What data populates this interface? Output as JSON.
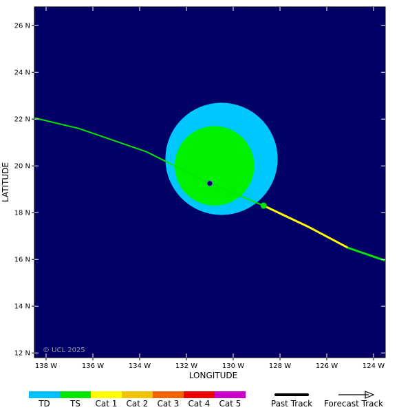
{
  "map": {
    "background_color": "#000066",
    "copyright": "© UCL 2025",
    "x_axis": {
      "title": "LONGITUDE",
      "range": [
        -138.5,
        -123.5
      ],
      "ticks": [
        {
          "value": -138,
          "label": "138 W"
        },
        {
          "value": -136,
          "label": "136 W"
        },
        {
          "value": -134,
          "label": "134 W"
        },
        {
          "value": -132,
          "label": "132 W"
        },
        {
          "value": -130,
          "label": "130 W"
        },
        {
          "value": -128,
          "label": "128 W"
        },
        {
          "value": -126,
          "label": "126 W"
        },
        {
          "value": -124,
          "label": "124 W"
        }
      ]
    },
    "y_axis": {
      "title": "LATITUDE",
      "range": [
        11.8,
        26.8
      ],
      "ticks": [
        {
          "value": 12,
          "label": "12 N"
        },
        {
          "value": 14,
          "label": "14 N"
        },
        {
          "value": 16,
          "label": "16 N"
        },
        {
          "value": 18,
          "label": "18 N"
        },
        {
          "value": 20,
          "label": "20 N"
        },
        {
          "value": 22,
          "label": "22 N"
        },
        {
          "value": 24,
          "label": "24 N"
        },
        {
          "value": 26,
          "label": "26 N"
        }
      ]
    },
    "wind_fields": [
      {
        "category": "TD",
        "color": "#00c8ff",
        "center": [
          -130.5,
          20.3
        ],
        "radius_deg": 2.4
      },
      {
        "category": "TS",
        "color": "#00f000",
        "center": [
          -130.8,
          20.0
        ],
        "radius_deg": 1.7
      }
    ],
    "current_position": {
      "lon": -131.0,
      "lat": 19.25,
      "color": "#000066"
    },
    "forecast_track": {
      "segments": [
        {
          "color": "#00e600",
          "points": [
            [
              -138.5,
              22.05
            ],
            [
              -136.6,
              21.6
            ],
            [
              -133.7,
              20.6
            ],
            [
              -131.0,
              19.25
            ],
            [
              -128.7,
              18.3
            ]
          ]
        },
        {
          "color": "#ffff00",
          "points": [
            [
              -128.7,
              18.3
            ],
            [
              -126.8,
              17.4
            ],
            [
              -125.1,
              16.5
            ]
          ]
        },
        {
          "color": "#00e600",
          "points": [
            [
              -125.1,
              16.5
            ],
            [
              -123.5,
              15.95
            ]
          ]
        }
      ],
      "dot": {
        "lon": -128.7,
        "lat": 18.3,
        "color": "#00e600"
      }
    }
  },
  "legend": {
    "categories": [
      {
        "label": "TD",
        "color": "#00bfff"
      },
      {
        "label": "TS",
        "color": "#00e600"
      },
      {
        "label": "Cat 1",
        "color": "#ffff00"
      },
      {
        "label": "Cat 2",
        "color": "#f2c200"
      },
      {
        "label": "Cat 3",
        "color": "#f06400"
      },
      {
        "label": "Cat 4",
        "color": "#f00000"
      },
      {
        "label": "Cat 5",
        "color": "#c800c8"
      }
    ],
    "past_track_label": "Past Track",
    "forecast_track_label": "Forecast Track"
  }
}
